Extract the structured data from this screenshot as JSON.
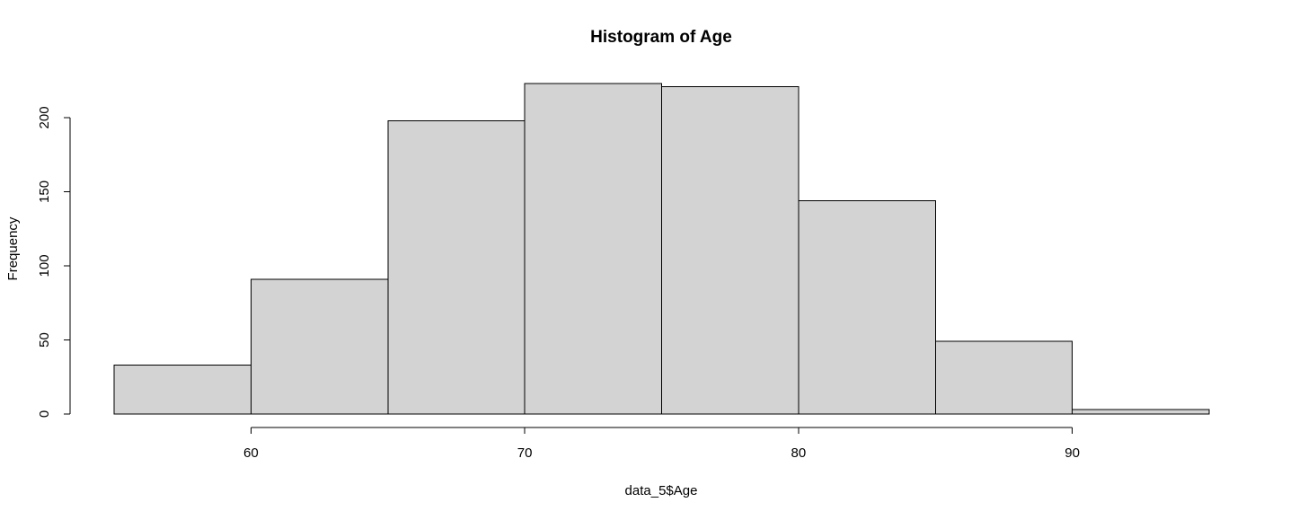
{
  "chart_data": {
    "type": "bar",
    "subtype": "histogram",
    "title": "Histogram of Age",
    "xlabel": "data_5$Age",
    "ylabel": "Frequency",
    "bins": [
      {
        "from": 55,
        "to": 60,
        "count": 33
      },
      {
        "from": 60,
        "to": 65,
        "count": 91
      },
      {
        "from": 65,
        "to": 70,
        "count": 198
      },
      {
        "from": 70,
        "to": 75,
        "count": 223
      },
      {
        "from": 75,
        "to": 80,
        "count": 221
      },
      {
        "from": 80,
        "to": 85,
        "count": 144
      },
      {
        "from": 85,
        "to": 90,
        "count": 49
      },
      {
        "from": 90,
        "to": 95,
        "count": 3
      }
    ],
    "xlim": [
      55,
      95
    ],
    "ylim": [
      0,
      223
    ],
    "x_ticks": [
      60,
      70,
      80,
      90
    ],
    "y_ticks": [
      0,
      50,
      100,
      150,
      200
    ],
    "bar_fill": "#d3d3d3",
    "bar_stroke": "#000000",
    "grid": false,
    "legend": "none"
  }
}
